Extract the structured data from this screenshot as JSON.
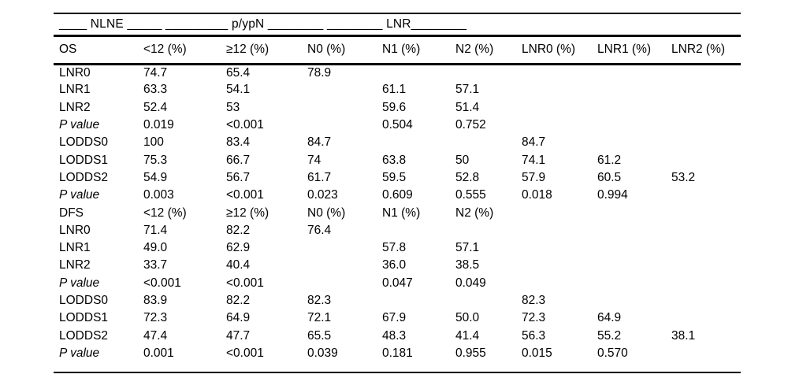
{
  "table": {
    "top_header": "____ NLNE _____ _________ p/ypN ________ ________ LNR________",
    "columns": [
      "OS",
      "<12 (%)",
      "≥12 (%)",
      "N0 (%)",
      "N1 (%)",
      "N2 (%)",
      "LNR0 (%)",
      "LNR1 (%)",
      "LNR2 (%)"
    ],
    "rows": [
      {
        "label": "LNR0",
        "italic": false,
        "values": [
          "74.7",
          "65.4",
          "78.9",
          "",
          "",
          "",
          "",
          ""
        ]
      },
      {
        "label": "LNR1",
        "italic": false,
        "values": [
          "63.3",
          "54.1",
          "",
          "61.1",
          "57.1",
          "",
          "",
          ""
        ]
      },
      {
        "label": "LNR2",
        "italic": false,
        "values": [
          "52.4",
          "53",
          "",
          "59.6",
          "51.4",
          "",
          "",
          ""
        ]
      },
      {
        "label": "P value",
        "italic": true,
        "values": [
          "0.019",
          "<0.001",
          "",
          "0.504",
          "0.752",
          "",
          "",
          ""
        ]
      },
      {
        "label": "LODDS0",
        "italic": false,
        "values": [
          "100",
          "83.4",
          "84.7",
          "",
          "",
          "84.7",
          "",
          ""
        ]
      },
      {
        "label": "LODDS1",
        "italic": false,
        "values": [
          "75.3",
          "66.7",
          "74",
          "63.8",
          "50",
          "74.1",
          "61.2",
          ""
        ]
      },
      {
        "label": "LODDS2",
        "italic": false,
        "values": [
          "54.9",
          "56.7",
          "61.7",
          "59.5",
          "52.8",
          "57.9",
          "60.5",
          "53.2"
        ]
      },
      {
        "label": "P value",
        "italic": true,
        "values": [
          "0.003",
          "<0.001",
          "0.023",
          "0.609",
          "0.555",
          "0.018",
          "0.994",
          ""
        ]
      },
      {
        "label": "DFS",
        "italic": false,
        "values": [
          "<12 (%)",
          "≥12 (%)",
          "N0 (%)",
          "N1 (%)",
          "N2 (%)",
          "",
          "",
          ""
        ]
      },
      {
        "label": "LNR0",
        "italic": false,
        "values": [
          "71.4",
          "82.2",
          "76.4",
          "",
          "",
          "",
          "",
          ""
        ]
      },
      {
        "label": "LNR1",
        "italic": false,
        "values": [
          "49.0",
          "62.9",
          "",
          "57.8",
          "57.1",
          "",
          "",
          ""
        ]
      },
      {
        "label": "LNR2",
        "italic": false,
        "values": [
          "33.7",
          "40.4",
          "",
          "36.0",
          "38.5",
          "",
          "",
          ""
        ]
      },
      {
        "label": "P value",
        "italic": true,
        "values": [
          "<0.001",
          "<0.001",
          "",
          "0.047",
          "0.049",
          "",
          "",
          ""
        ]
      },
      {
        "label": "LODDS0",
        "italic": false,
        "values": [
          "83.9",
          "82.2",
          "82.3",
          "",
          "",
          "82.3",
          "",
          ""
        ]
      },
      {
        "label": "LODDS1",
        "italic": false,
        "values": [
          "72.3",
          "64.9",
          "72.1",
          "67.9",
          "50.0",
          "72.3",
          "64.9",
          ""
        ]
      },
      {
        "label": "LODDS2",
        "italic": false,
        "values": [
          "47.4",
          "47.7",
          "65.5",
          "48.3",
          "41.4",
          "56.3",
          "55.2",
          "38.1"
        ]
      },
      {
        "label": "P value",
        "italic": true,
        "values": [
          "0.001",
          "<0.001",
          "0.039",
          "0.181",
          "0.955",
          "0.015",
          "0.570",
          ""
        ]
      }
    ]
  }
}
